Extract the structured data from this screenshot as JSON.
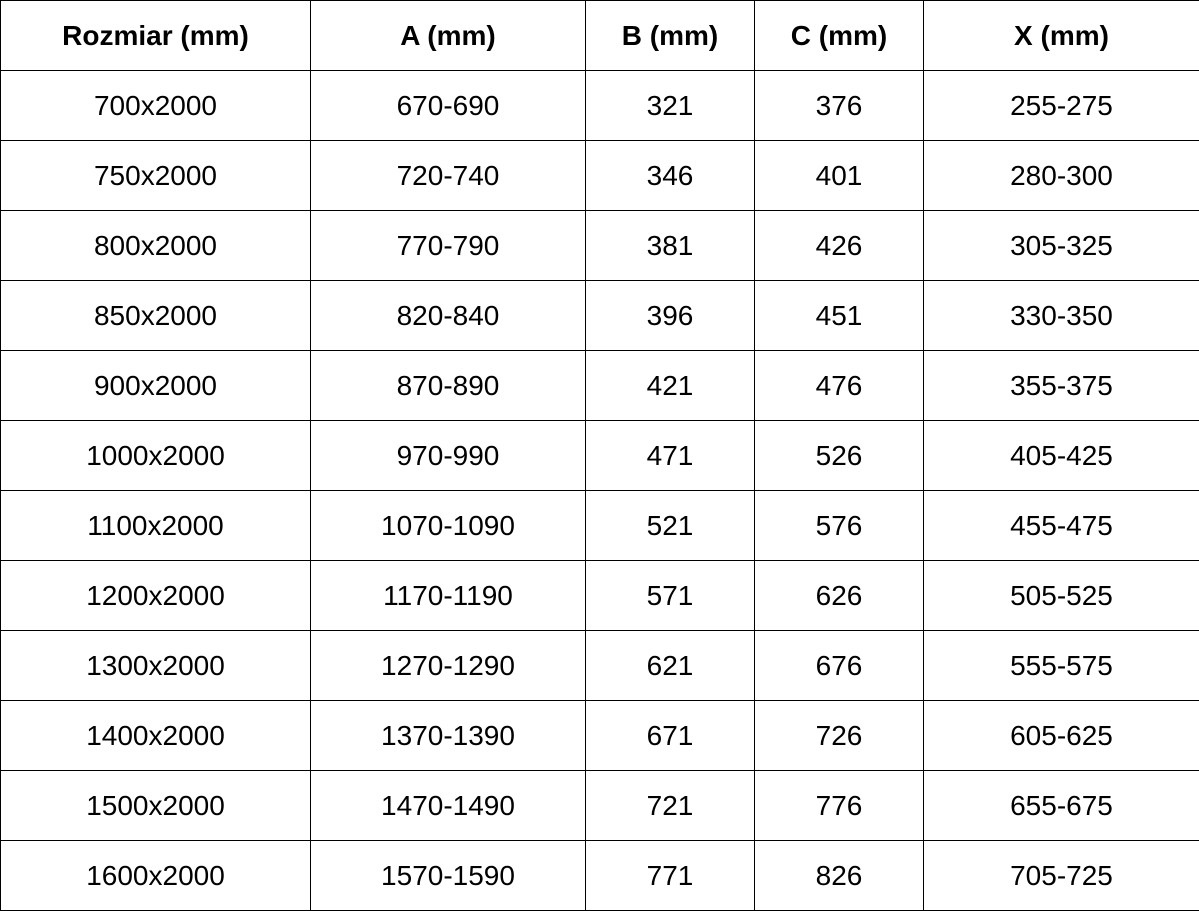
{
  "headers": [
    "Rozmiar (mm)",
    "A (mm)",
    "B (mm)",
    "C (mm)",
    "X (mm)"
  ],
  "rows": [
    [
      "700x2000",
      "670-690",
      "321",
      "376",
      "255-275"
    ],
    [
      "750x2000",
      "720-740",
      "346",
      "401",
      "280-300"
    ],
    [
      "800x2000",
      "770-790",
      "381",
      "426",
      "305-325"
    ],
    [
      "850x2000",
      "820-840",
      "396",
      "451",
      "330-350"
    ],
    [
      "900x2000",
      "870-890",
      "421",
      "476",
      "355-375"
    ],
    [
      "1000x2000",
      "970-990",
      "471",
      "526",
      "405-425"
    ],
    [
      "1100x2000",
      "1070-1090",
      "521",
      "576",
      "455-475"
    ],
    [
      "1200x2000",
      "1170-1190",
      "571",
      "626",
      "505-525"
    ],
    [
      "1300x2000",
      "1270-1290",
      "621",
      "676",
      "555-575"
    ],
    [
      "1400x2000",
      "1370-1390",
      "671",
      "726",
      "605-625"
    ],
    [
      "1500x2000",
      "1470-1490",
      "721",
      "776",
      "655-675"
    ],
    [
      "1600x2000",
      "1570-1590",
      "771",
      "826",
      "705-725"
    ]
  ]
}
